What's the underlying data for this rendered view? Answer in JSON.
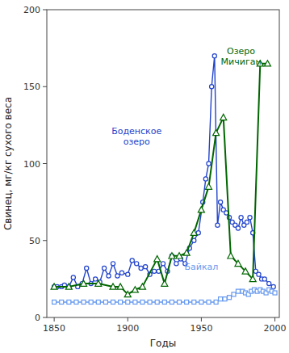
{
  "chart_data": {
    "type": "line",
    "xlabel": "Годы",
    "ylabel": "Свинец, мг/кг сухого веса",
    "xlim": [
      1845,
      2003
    ],
    "ylim": [
      0,
      200
    ],
    "xticks": [
      1850,
      1900,
      1950,
      2000
    ],
    "yticks": [
      0,
      50,
      100,
      150,
      200
    ],
    "grid": false,
    "series": [
      {
        "color": "#2244cc",
        "marker": "circle",
        "x": [
          1850,
          1852,
          1855,
          1857,
          1860,
          1863,
          1866,
          1869,
          1872,
          1875,
          1878,
          1881,
          1884,
          1887,
          1890,
          1893,
          1896,
          1900,
          1903,
          1906,
          1909,
          1912,
          1915,
          1918,
          1921,
          1924,
          1927,
          1930,
          1933,
          1936,
          1939,
          1942,
          1945,
          1948,
          1951,
          1953,
          1955,
          1957,
          1959,
          1961,
          1963,
          1965,
          1967,
          1969,
          1971,
          1973,
          1975,
          1977,
          1979,
          1981,
          1983,
          1985,
          1987,
          1989,
          1991,
          1993,
          1996,
          1999
        ],
        "values": [
          20,
          20,
          20,
          21,
          20,
          26,
          20,
          22,
          32,
          22,
          25,
          23,
          32,
          27,
          35,
          27,
          29,
          28,
          37,
          35,
          32,
          33,
          28,
          30,
          30,
          35,
          30,
          40,
          35,
          38,
          35,
          45,
          50,
          55,
          75,
          90,
          100,
          150,
          170,
          60,
          75,
          70,
          68,
          65,
          62,
          60,
          58,
          65,
          60,
          62,
          65,
          55,
          30,
          28,
          25,
          25,
          22,
          20
        ]
      },
      {
        "color": "#006600",
        "marker": "triangle",
        "x": [
          1850,
          1860,
          1870,
          1880,
          1890,
          1895,
          1900,
          1905,
          1910,
          1920,
          1925,
          1930,
          1935,
          1940,
          1945,
          1950,
          1955,
          1960,
          1965,
          1970,
          1975,
          1980,
          1985,
          1990,
          1995
        ],
        "values": [
          20,
          20,
          22,
          22,
          20,
          20,
          15,
          18,
          20,
          38,
          22,
          40,
          40,
          42,
          55,
          70,
          85,
          120,
          130,
          40,
          35,
          30,
          25,
          165,
          165
        ]
      },
      {
        "color": "#6699ee",
        "marker": "square",
        "x": [
          1850,
          1855,
          1860,
          1865,
          1870,
          1875,
          1880,
          1885,
          1890,
          1895,
          1900,
          1905,
          1910,
          1915,
          1920,
          1925,
          1930,
          1935,
          1940,
          1945,
          1950,
          1955,
          1960,
          1963,
          1966,
          1969,
          1972,
          1975,
          1978,
          1980,
          1982,
          1984,
          1986,
          1988,
          1990,
          1992,
          1994,
          1996,
          1998,
          2000
        ],
        "values": [
          10,
          10,
          10,
          10,
          10,
          10,
          10,
          10,
          10,
          10,
          10,
          10,
          10,
          10,
          10,
          10,
          10,
          10,
          10,
          10,
          10,
          10,
          10,
          12,
          12,
          13,
          15,
          17,
          17,
          16,
          15,
          17,
          18,
          17,
          18,
          17,
          16,
          18,
          17,
          16
        ]
      }
    ],
    "annotations": [
      {
        "text": "Боденское\nозеро",
        "x": 1906,
        "y": 118,
        "color": "#2244cc"
      },
      {
        "text": "Озеро\nМичиган",
        "x": 1977,
        "y": 170,
        "color": "#006600"
      },
      {
        "text": "Байкал",
        "x": 1950,
        "y": 33,
        "color": "#6699ee"
      }
    ]
  }
}
